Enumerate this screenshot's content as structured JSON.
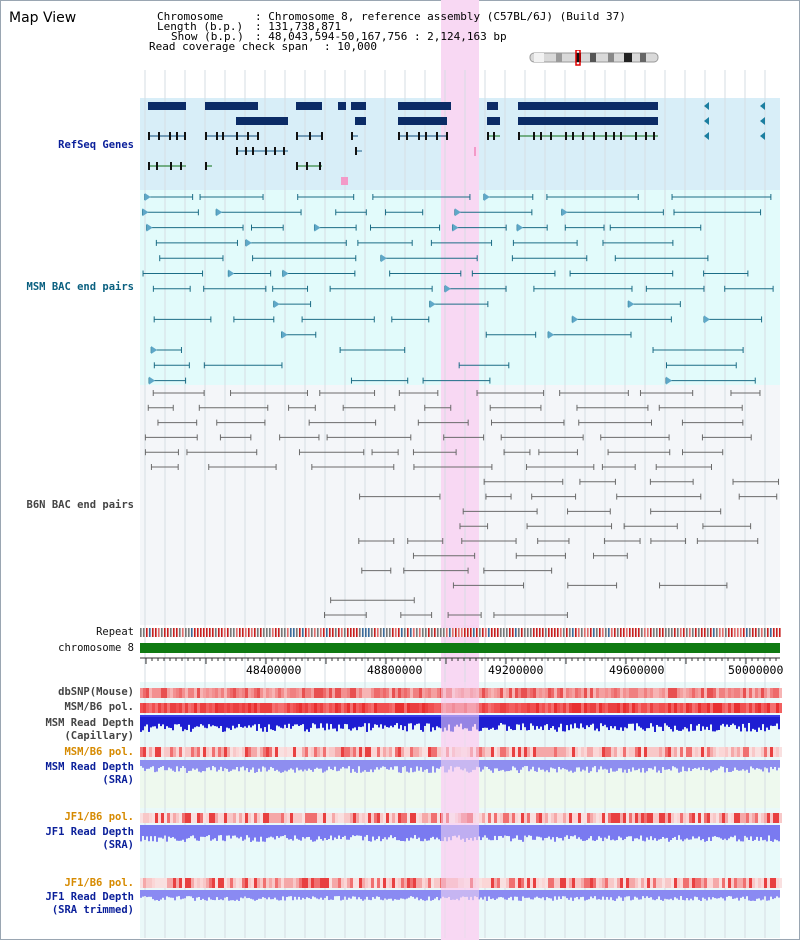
{
  "page": {
    "title": "Map View"
  },
  "header": {
    "chromosome_key": "Chromosome",
    "chromosome_val": ": Chromosome 8, reference assembly (C57BL/6J) (Build 37)",
    "length_key": "Length (b.p.)",
    "length_val": ": 131,738,871",
    "show_key": "Show (b.p.)",
    "show_val": ": 48,043,594-50,167,756 : 2,124,163 bp",
    "coverage_key": "Read coverage check span",
    "coverage_val": ": 10,000"
  },
  "tracks": {
    "refseq": "RefSeq Genes",
    "msm_bac": "MSM BAC end pairs",
    "b6n_bac": "B6N BAC end pairs",
    "repeat": "Repeat",
    "chromosome": "chromosome 8",
    "dbsnp": "dbSNP(Mouse)",
    "msm_b6_pol_1": "MSM/B6 pol.",
    "msm_depth_cap_1": "MSM Read Depth",
    "msm_depth_cap_2": "(Capillary)",
    "msm_b6_pol_2": "MSM/B6 pol.",
    "msm_depth_sra_1": "MSM Read Depth",
    "msm_depth_sra_2": "(SRA)",
    "jf1_pol_1": "JF1/B6 pol.",
    "jf1_depth_sra_1": "JF1 Read Depth",
    "jf1_depth_sra_2": "(SRA)",
    "jf1_pol_2": "JF1/B6 pol.",
    "jf1_depth_trim_1": "JF1 Read Depth",
    "jf1_depth_trim_2": "(SRA trimmed)"
  },
  "axis": {
    "ticks": [
      "48400000",
      "48800000",
      "49200000",
      "49600000",
      "50000000"
    ]
  },
  "colors": {
    "refseq_bg": "#d8eef8",
    "bac_bg": "#e2fbfb",
    "highlight": "#f8d8f3",
    "chromosome_bar": "#0f7a12",
    "refseq_dark": "#0b2b66",
    "refseq_green": "#0d6e12",
    "msm_bac": "#1c6d86",
    "b6n_bac": "#6b6b6b"
  }
}
